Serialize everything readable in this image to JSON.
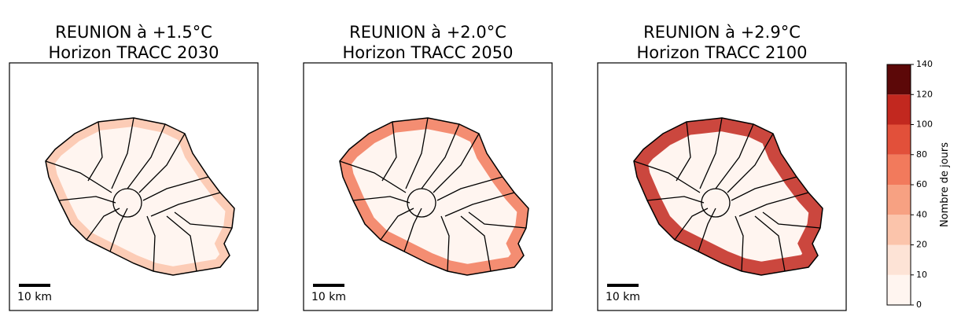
{
  "panels": [
    {
      "title_lines": [
        "REUNION à +1.5°C",
        "Horizon TRACC 2030"
      ],
      "scale_label": "10 km"
    },
    {
      "title_lines": [
        "REUNION à +2.0°C",
        "Horizon TRACC 2050"
      ],
      "scale_label": "10 km"
    },
    {
      "title_lines": [
        "REUNION à +2.9°C",
        "Horizon TRACC 2100"
      ],
      "scale_label": "10 km"
    }
  ],
  "colorbar": {
    "label": "Nombre de jours",
    "ticks": [
      0,
      10,
      20,
      40,
      60,
      80,
      100,
      120,
      140
    ],
    "colors": [
      "#fff5f0",
      "#fde3d6",
      "#fbc4ab",
      "#f7a182",
      "#f27a5c",
      "#e2503a",
      "#c2281f",
      "#5c0808"
    ]
  }
}
